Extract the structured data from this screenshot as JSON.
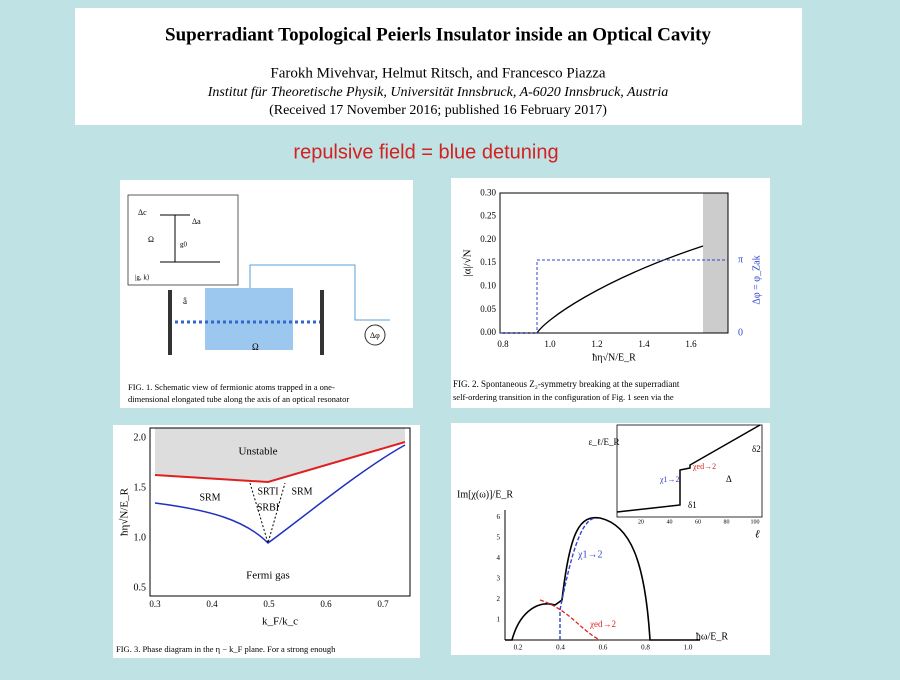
{
  "header": {
    "title": "Superradiant Topological Peierls Insulator inside an Optical Cavity",
    "authors": "Farokh Mivehvar, Helmut Ritsch, and Francesco Piazza",
    "affiliation": "Institut für Theoretische Physik, Universität Innsbruck, A-6020 Innsbruck, Austria",
    "received": "(Received 17 November 2016; published 16 February 2017)"
  },
  "note": "repulsive field = blue detuning",
  "fig1": {
    "labels": [
      "Δc",
      "Δa",
      "Ω",
      "g0",
      "|g, k⟩",
      "â",
      "Ω",
      "Δφ"
    ],
    "caption": [
      "FIG. 1.   Schematic view of fermionic atoms trapped in a one-",
      "dimensional elongated tube along the axis of an optical resonator"
    ]
  },
  "fig2": {
    "yticks": [
      "0.00",
      "0.05",
      "0.10",
      "0.15",
      "0.20",
      "0.25",
      "0.30"
    ],
    "xticks": [
      "0.8",
      "1.0",
      "1.2",
      "1.4",
      "1.6"
    ],
    "ylabel": "|α|/√N",
    "xlabel": "ħη√N/E_R",
    "y2label": "Δφ = φ_Zak",
    "y2ticks": [
      "0",
      "π"
    ],
    "caption": [
      "FIG. 2.   Spontaneous Z₂-symmetry breaking at the superradiant",
      "self-ordering transition in the configuration of Fig. 1 seen via the"
    ]
  },
  "fig3": {
    "yticks": [
      "0.5",
      "1.0",
      "1.5",
      "2.0"
    ],
    "xticks": [
      "0.3",
      "0.4",
      "0.5",
      "0.6",
      "0.7"
    ],
    "ylabel": "ħη√N/E_R",
    "xlabel": "k_F/k_c",
    "regions": [
      "Unstable",
      "SRM",
      "SRTI",
      "SRBI",
      "SRM",
      "Fermi gas"
    ],
    "caption": "FIG. 3.   Phase diagram in the η − k_F plane. For a strong enough"
  },
  "fig4": {
    "ylabel": "Im[χ(ω)]/E_R",
    "xlabel": "ħω/E_R",
    "xticks": [
      "0.2",
      "0.4",
      "0.6",
      "0.8",
      "1.0"
    ],
    "yticks": [
      "1",
      "2",
      "3",
      "4",
      "5",
      "6"
    ],
    "series_labels": [
      "χ1→2",
      "χed→2"
    ],
    "inset": {
      "ylabel": "ε_ℓ/E_R",
      "xlabel": "ℓ",
      "xticks": [
        "20",
        "40",
        "60",
        "80",
        "100"
      ],
      "labels": [
        "δ1",
        "δ2",
        "Δ",
        "χ1→2",
        "χed→2"
      ]
    }
  }
}
